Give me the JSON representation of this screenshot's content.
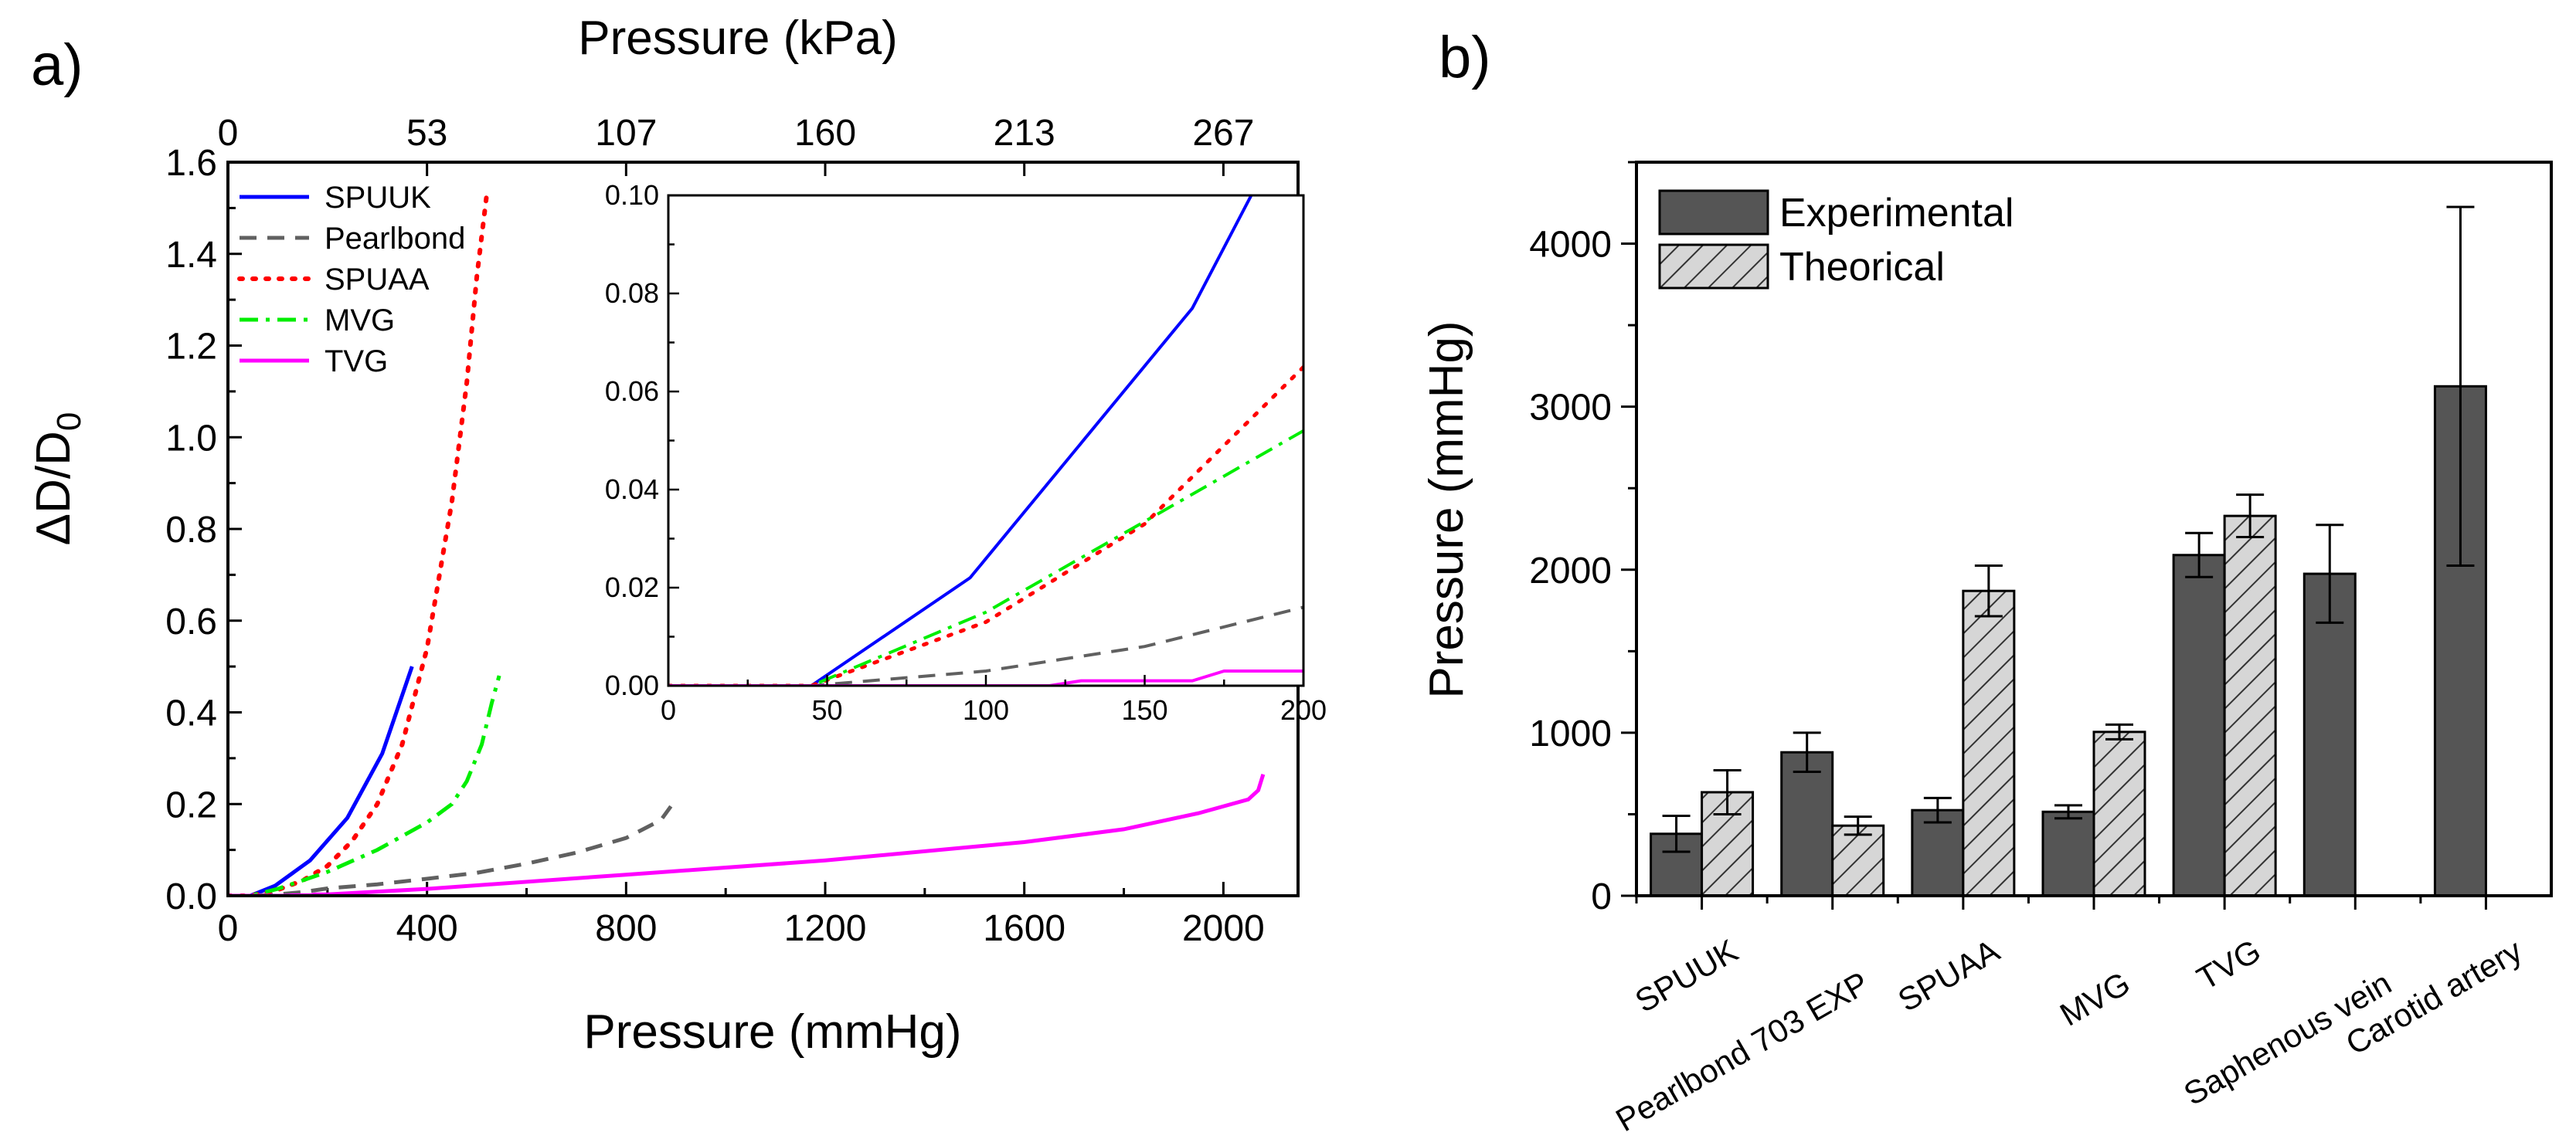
{
  "panel_a": {
    "label": "a)",
    "chart_data": {
      "type": "line",
      "title": "",
      "xlabel": "Pressure (mmHg)",
      "ylabel": "ΔD/D0",
      "ylabel_main": "ΔD/D",
      "ylabel_sub": "0",
      "x2label": "Pressure (kPa)",
      "xlim": [
        0,
        2150
      ],
      "ylim": [
        0,
        1.6
      ],
      "xticks": [
        0,
        400,
        800,
        1200,
        1600,
        2000
      ],
      "xtick_labels": [
        "0",
        "400",
        "800",
        "1200",
        "1600",
        "2000"
      ],
      "yticks": [
        0.0,
        0.2,
        0.4,
        0.6,
        0.8,
        1.0,
        1.2,
        1.4,
        1.6
      ],
      "ytick_labels": [
        "0.0",
        "0.2",
        "0.4",
        "0.6",
        "0.8",
        "1.0",
        "1.2",
        "1.4",
        "1.6"
      ],
      "x2ticks_mmHg": [
        0,
        400,
        800,
        1200,
        1600,
        2000
      ],
      "x2tick_labels": [
        "0",
        "53",
        "107",
        "160",
        "213",
        "267"
      ],
      "legend_position": "top-left",
      "series": [
        {
          "name": "SPUUK",
          "color": "#0000ff",
          "dash": "solid",
          "x": [
            0,
            45,
            95,
            165,
            240,
            310,
            370
          ],
          "y": [
            0,
            0,
            0.022,
            0.077,
            0.17,
            0.31,
            0.5
          ]
        },
        {
          "name": "Pearlbond",
          "color": "#606060",
          "dash": "dash",
          "x": [
            0,
            45,
            100,
            150,
            200,
            300,
            400,
            500,
            600,
            700,
            800,
            870,
            890
          ],
          "y": [
            0,
            0,
            0.003,
            0.008,
            0.016,
            0.025,
            0.037,
            0.05,
            0.07,
            0.094,
            0.126,
            0.165,
            0.195
          ]
        },
        {
          "name": "SPUAA",
          "color": "#ff0000",
          "dash": "dot",
          "x": [
            0,
            45,
            100,
            150,
            200,
            250,
            300,
            350,
            400,
            450,
            480,
            500,
            520
          ],
          "y": [
            0,
            0,
            0.013,
            0.033,
            0.065,
            0.12,
            0.2,
            0.33,
            0.54,
            0.86,
            1.12,
            1.35,
            1.53
          ]
        },
        {
          "name": "MVG",
          "color": "#00ee00",
          "dash": "dashdot",
          "x": [
            0,
            45,
            100,
            200,
            300,
            400,
            450,
            480,
            510,
            530,
            545
          ],
          "y": [
            0,
            0,
            0.015,
            0.052,
            0.1,
            0.16,
            0.2,
            0.25,
            0.33,
            0.42,
            0.48
          ]
        },
        {
          "name": "TVG",
          "color": "#ff00ff",
          "dash": "solid",
          "x": [
            0,
            120,
            130,
            165,
            175,
            200,
            400,
            800,
            1200,
            1600,
            1800,
            1950,
            2050,
            2070,
            2080
          ],
          "y": [
            0,
            0,
            0.001,
            0.001,
            0.003,
            0.003,
            0.015,
            0.046,
            0.077,
            0.117,
            0.145,
            0.18,
            0.21,
            0.23,
            0.265
          ]
        }
      ],
      "inset": {
        "xlim": [
          0,
          200
        ],
        "ylim": [
          0,
          0.1
        ],
        "xticks": [
          0,
          50,
          100,
          150,
          200
        ],
        "xtick_labels": [
          "0",
          "50",
          "100",
          "150",
          "200"
        ],
        "yticks": [
          0,
          0.02,
          0.04,
          0.06,
          0.08,
          0.1
        ],
        "ytick_labels": [
          "0.00",
          "0.02",
          "0.04",
          "0.06",
          "0.08",
          "0.10"
        ]
      }
    }
  },
  "panel_b": {
    "label": "b)",
    "chart_data": {
      "type": "bar",
      "title": "",
      "xlabel": "",
      "ylabel": "Pressure (mmHg)",
      "ylim": [
        0,
        4500
      ],
      "yticks": [
        0,
        1000,
        2000,
        3000,
        4000
      ],
      "ytick_labels": [
        "0",
        "1000",
        "2000",
        "3000",
        "4000"
      ],
      "categories": [
        "SPUUK",
        "Pearlbond 703 EXP",
        "SPUAA",
        "MVG",
        "TVG",
        "Saphenous vein",
        "Carotid artery"
      ],
      "legend_position": "top-left",
      "series": [
        {
          "name": "Experimental",
          "fill": "#555555",
          "pattern": "solid",
          "values": [
            380,
            880,
            525,
            515,
            2090,
            1975,
            3125
          ],
          "errors": [
            110,
            120,
            75,
            40,
            135,
            300,
            1100
          ]
        },
        {
          "name": "Theorical",
          "fill": "#d6d6d6",
          "pattern": "hatch",
          "values": [
            635,
            430,
            1870,
            1005,
            2330,
            null,
            null
          ],
          "errors": [
            135,
            55,
            155,
            45,
            130,
            null,
            null
          ]
        }
      ]
    }
  }
}
